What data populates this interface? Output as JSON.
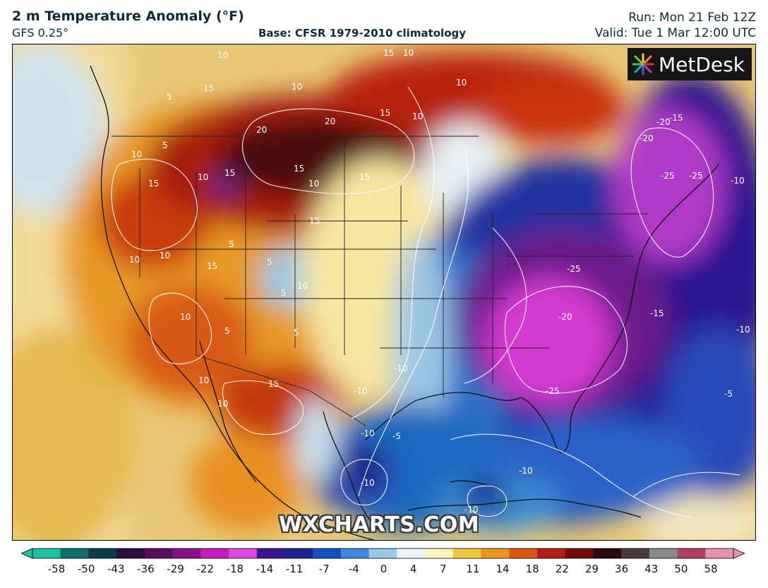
{
  "header": {
    "title": "2 m Temperature Anomaly (°F)",
    "model": "GFS 0.25°",
    "base": "Base: CFSR 1979-2010 climatology",
    "run": "Run: Mon 21 Feb 12Z",
    "valid": "Valid: Tue 1 Mar 12:00 UTC"
  },
  "logo": {
    "text": "MetDesk",
    "icon": "metdesk-burst-icon"
  },
  "watermark": "WXCHARTS.COM",
  "colorbar": {
    "ticks": [
      "-58",
      "-50",
      "-43",
      "-36",
      "-29",
      "-22",
      "-18",
      "-14",
      "-11",
      "-7",
      "-4",
      "0",
      "4",
      "7",
      "11",
      "14",
      "18",
      "22",
      "29",
      "36",
      "43",
      "50",
      "58"
    ],
    "colors": [
      "#1fbf9a",
      "#0e6f6a",
      "#0a3a4a",
      "#2a0f3a",
      "#5a0d5a",
      "#8c0f8c",
      "#c21ec2",
      "#e04ae0",
      "#3a1590",
      "#1a2590",
      "#1550c0",
      "#3a8ad8",
      "#9ac8e8",
      "#eaf4f8",
      "#fbf2c0",
      "#f0c840",
      "#e89820",
      "#d85810",
      "#b41e0e",
      "#700c0c",
      "#2a0c0c",
      "#4a3a3a",
      "#8a8a8a",
      "#b04060",
      "#e890b0"
    ]
  },
  "contour_labels": [
    "15",
    "10",
    "10",
    "10",
    "15",
    "15",
    "20",
    "20",
    "15",
    "10",
    "10",
    "5",
    "15",
    "10",
    "5",
    "15",
    "10",
    "15",
    "10",
    "15",
    "10",
    "5",
    "5",
    "10",
    "10",
    "15",
    "5",
    "10",
    "5",
    "5",
    "10",
    "15",
    "10",
    "-10",
    "-5",
    "-10",
    "-10",
    "-10",
    "-10",
    "-10",
    "-20",
    "-15",
    "-25",
    "-25",
    "-20",
    "-25",
    "-10",
    "-20",
    "-15",
    "-10",
    "-5",
    "-25"
  ]
}
